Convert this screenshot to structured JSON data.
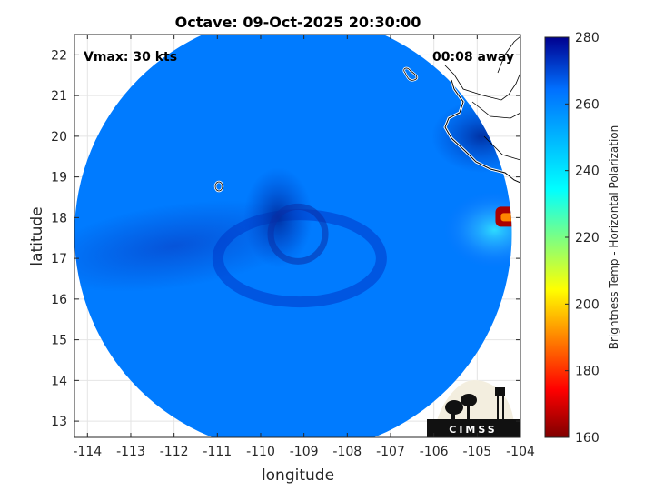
{
  "chart_data": {
    "type": "heatmap",
    "title": "Octave: 09-Oct-2025 20:30:00",
    "xlabel": "longitude",
    "ylabel": "latitude",
    "xlim": [
      -114.3,
      -104
    ],
    "ylim": [
      12.6,
      22.5
    ],
    "xticks": [
      -114,
      -113,
      -112,
      -111,
      -110,
      -109,
      -108,
      -107,
      -106,
      -105,
      -104
    ],
    "yticks": [
      13,
      14,
      15,
      16,
      17,
      18,
      19,
      20,
      21,
      22
    ],
    "grid": true,
    "colorbar": {
      "label": "Brightness Temp - Horizontal Polarization",
      "range": [
        160,
        280
      ],
      "ticks": [
        160,
        180,
        200,
        220,
        240,
        260,
        280
      ],
      "colors": [
        "#7f0000",
        "#ff0000",
        "#ffff00",
        "#00ffff",
        "#0070ff",
        "#00008f"
      ]
    },
    "annotations": {
      "vmax": "Vmax: 30 kts",
      "time_away": "00:08 away"
    },
    "storm_center": {
      "lon": -109.5,
      "lat": 17.7
    },
    "coverage_center": {
      "lon": -109.25,
      "lat": 17.6
    },
    "coverage_radius_deg": 5.05,
    "base_brightness_temp": 262,
    "features": [
      {
        "name": "cold-core",
        "lon": -109.6,
        "lat": 18.0,
        "value": 274
      },
      {
        "name": "spiral-band",
        "lon": -109.1,
        "lat": 17.0,
        "value": 272
      },
      {
        "name": "west-band",
        "lon": -112.0,
        "lat": 17.3,
        "value": 266
      },
      {
        "name": "coastal-cyan",
        "lon": -104.6,
        "lat": 17.7,
        "value": 238
      },
      {
        "name": "coastal-hot",
        "lon": -104.2,
        "lat": 18.0,
        "value": 165
      }
    ],
    "logo": "CIMSS"
  }
}
